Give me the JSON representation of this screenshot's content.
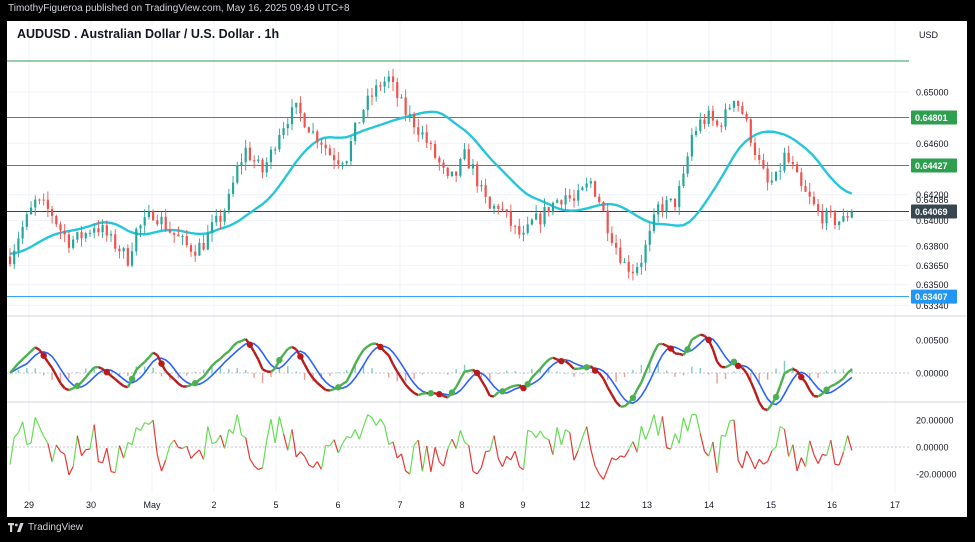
{
  "header": {
    "published": "TimothyFigueroa published on TradingView.com, May 16, 2025 09:49 UTC+8",
    "logo_text": "TradingView"
  },
  "chart_data": {
    "type": "candlestick",
    "title": "AUDUSD . Australian Dollar / U.S. Dollar . 1h",
    "currency": "USD",
    "ylim": [
      0.6328,
      0.6538
    ],
    "price_ticks": [
      {
        "label": "0.65000",
        "value": 0.65
      },
      {
        "label": "0.64600",
        "value": 0.646
      },
      {
        "label": "0.64200",
        "value": 0.642
      },
      {
        "label": "0.64000",
        "value": 0.64
      },
      {
        "label": "0.63800",
        "value": 0.638
      },
      {
        "label": "0.63650",
        "value": 0.6365
      },
      {
        "label": "0.63500",
        "value": 0.635
      },
      {
        "label": "0.63340",
        "value": 0.6334
      }
    ],
    "levels": [
      {
        "label": "0.64801",
        "value": 0.64801,
        "color": "#2e9e4f"
      },
      {
        "label": "0.64427",
        "value": 0.64427,
        "color": "#2e9e4f"
      },
      {
        "label": "0.64069",
        "value": 0.64069,
        "color": "#37474f"
      },
      {
        "label": "0.63407",
        "value": 0.63407,
        "color": "#2196f3"
      }
    ],
    "top_level": {
      "value": 0.6524,
      "color": "#2e9e4f"
    },
    "last_price": {
      "label": "0.64086",
      "value": 0.64086
    },
    "x_labels": [
      "29",
      "30",
      "May",
      "2",
      "5",
      "6",
      "7",
      "8",
      "9",
      "12",
      "13",
      "14",
      "15",
      "16",
      "17"
    ],
    "price_path": [
      [
        0,
        0.6372
      ],
      [
        6,
        0.6388
      ],
      [
        12,
        0.6401
      ],
      [
        18,
        0.6414
      ],
      [
        24,
        0.6411
      ],
      [
        30,
        0.6405
      ],
      [
        36,
        0.6393
      ],
      [
        42,
        0.6384
      ],
      [
        48,
        0.6386
      ],
      [
        54,
        0.639
      ],
      [
        60,
        0.6396
      ],
      [
        66,
        0.6392
      ],
      [
        72,
        0.6384
      ],
      [
        78,
        0.6378
      ],
      [
        84,
        0.637
      ],
      [
        90,
        0.6392
      ],
      [
        96,
        0.6398
      ],
      [
        102,
        0.6406
      ],
      [
        108,
        0.64
      ],
      [
        114,
        0.6392
      ],
      [
        120,
        0.6386
      ],
      [
        126,
        0.638
      ],
      [
        132,
        0.6378
      ],
      [
        138,
        0.6382
      ],
      [
        144,
        0.6394
      ],
      [
        150,
        0.6402
      ],
      [
        156,
        0.6416
      ],
      [
        162,
        0.644
      ],
      [
        168,
        0.6455
      ],
      [
        174,
        0.6446
      ],
      [
        180,
        0.6438
      ],
      [
        186,
        0.6452
      ],
      [
        192,
        0.647
      ],
      [
        198,
        0.648
      ],
      [
        204,
        0.6486
      ],
      [
        210,
        0.6478
      ],
      [
        216,
        0.6468
      ],
      [
        222,
        0.6462
      ],
      [
        228,
        0.6452
      ],
      [
        234,
        0.6448
      ],
      [
        240,
        0.645
      ],
      [
        246,
        0.647
      ],
      [
        252,
        0.6487
      ],
      [
        258,
        0.6497
      ],
      [
        264,
        0.6506
      ],
      [
        270,
        0.651
      ],
      [
        276,
        0.6496
      ],
      [
        282,
        0.6484
      ],
      [
        288,
        0.6476
      ],
      [
        294,
        0.6467
      ],
      [
        300,
        0.6455
      ],
      [
        306,
        0.6444
      ],
      [
        312,
        0.643
      ],
      [
        318,
        0.6436
      ],
      [
        324,
        0.645
      ],
      [
        330,
        0.644
      ],
      [
        336,
        0.6422
      ],
      [
        342,
        0.6408
      ],
      [
        348,
        0.6412
      ],
      [
        354,
        0.6402
      ],
      [
        360,
        0.6392
      ],
      [
        366,
        0.6386
      ],
      [
        372,
        0.6398
      ],
      [
        378,
        0.6402
      ],
      [
        384,
        0.641
      ],
      [
        390,
        0.6416
      ],
      [
        396,
        0.642
      ],
      [
        402,
        0.6414
      ],
      [
        408,
        0.6422
      ],
      [
        414,
        0.643
      ],
      [
        420,
        0.6416
      ],
      [
        426,
        0.6396
      ],
      [
        432,
        0.638
      ],
      [
        438,
        0.6366
      ],
      [
        444,
        0.6362
      ],
      [
        450,
        0.637
      ],
      [
        456,
        0.6388
      ],
      [
        462,
        0.641
      ],
      [
        468,
        0.6412
      ],
      [
        474,
        0.6414
      ],
      [
        480,
        0.6432
      ],
      [
        486,
        0.6466
      ],
      [
        492,
        0.6476
      ],
      [
        498,
        0.648
      ],
      [
        504,
        0.6473
      ],
      [
        510,
        0.6482
      ],
      [
        516,
        0.6497
      ],
      [
        522,
        0.6484
      ],
      [
        528,
        0.6465
      ],
      [
        534,
        0.6444
      ],
      [
        540,
        0.6428
      ],
      [
        546,
        0.6432
      ],
      [
        552,
        0.645
      ],
      [
        558,
        0.644
      ],
      [
        564,
        0.6424
      ],
      [
        570,
        0.6416
      ],
      [
        576,
        0.6405
      ],
      [
        582,
        0.6402
      ],
      [
        588,
        0.64
      ],
      [
        594,
        0.64
      ],
      [
        600,
        0.6409
      ]
    ]
  },
  "indicators": {
    "macd": {
      "ticks": [
        {
          "label": "0.00500",
          "value": 0.005
        },
        {
          "label": "0.00000",
          "value": 0.0
        }
      ]
    },
    "oscillator": {
      "ticks": [
        {
          "label": "20.00000",
          "value": 20
        },
        {
          "label": "0.00000",
          "value": 0
        },
        {
          "label": "-20.00000",
          "value": -20
        }
      ]
    }
  },
  "colors": {
    "up": "#26a69a",
    "down": "#ef5350",
    "ma": "#26c6da",
    "macd_green": "#4caf50",
    "macd_red": "#b71c1c",
    "macd_blue": "#2962ff",
    "osc_green": "#66dd55",
    "osc_red": "#e53935"
  }
}
